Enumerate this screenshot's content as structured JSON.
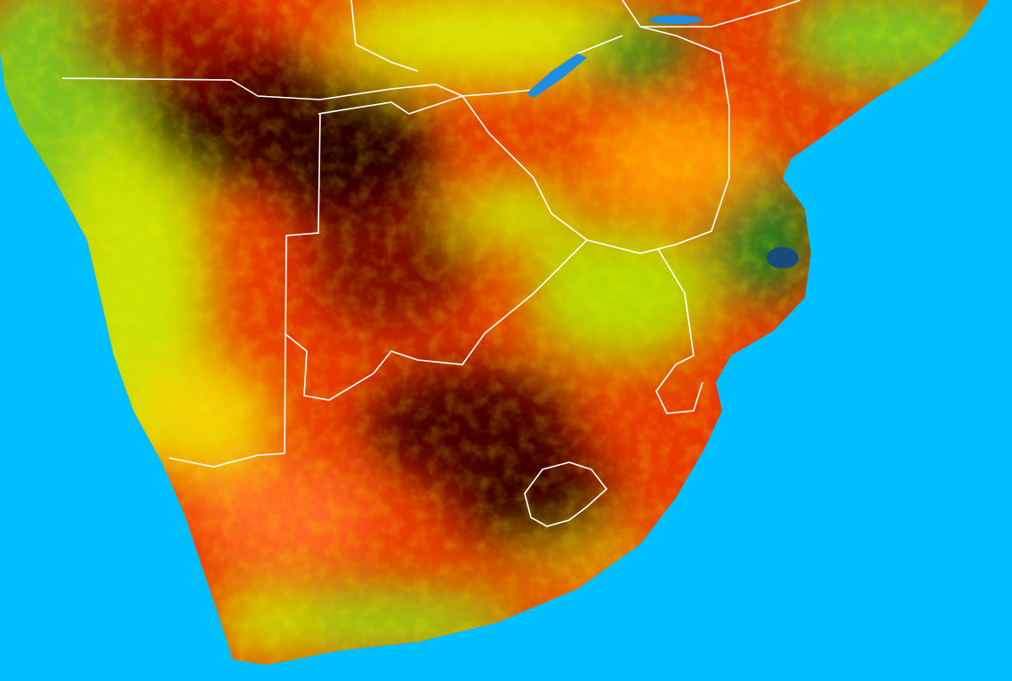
{
  "map": {
    "region": "Southern Africa",
    "colors": {
      "ocean": "#00bfff",
      "land_high": "#1a7a1a",
      "land_mid_green": "#7fc31c",
      "land_yellow": "#f2f000",
      "land_orange": "#ff7a00",
      "land_red": "#e81800",
      "land_dark": "#3a0000",
      "borders": "#ffffff",
      "water_bodies": "#1e8fe0"
    }
  }
}
